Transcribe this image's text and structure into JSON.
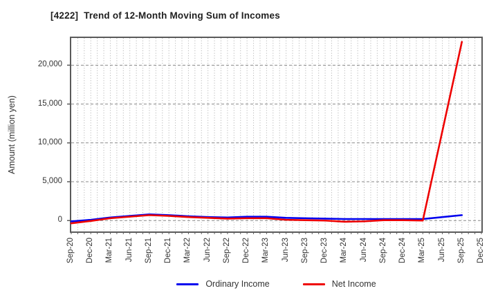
{
  "chart_data": {
    "type": "line",
    "title": "[4222]  Trend of 12-Month Moving Sum of Incomes",
    "xlabel": "",
    "ylabel": "Amount (million yen)",
    "categories": [
      "Sep-20",
      "Dec-20",
      "Mar-21",
      "Jun-21",
      "Sep-21",
      "Dec-21",
      "Mar-22",
      "Jun-22",
      "Sep-22",
      "Dec-22",
      "Mar-23",
      "Jun-23",
      "Sep-23",
      "Dec-23",
      "Mar-24",
      "Jun-24",
      "Sep-24",
      "Dec-24",
      "Mar-25",
      "Jun-25",
      "Sep-25",
      "Dec-25"
    ],
    "series": [
      {
        "name": "Ordinary Income",
        "color": "#0000ee",
        "values": [
          -100,
          100,
          400,
          600,
          800,
          700,
          550,
          450,
          400,
          500,
          500,
          350,
          300,
          250,
          200,
          200,
          200,
          200,
          200,
          450,
          700,
          null
        ]
      },
      {
        "name": "Net Income",
        "color": "#ee0000",
        "values": [
          -350,
          -50,
          300,
          500,
          700,
          600,
          450,
          350,
          250,
          300,
          300,
          100,
          50,
          0,
          -150,
          -100,
          50,
          50,
          0,
          11500,
          23000,
          null
        ]
      }
    ],
    "ylim": [
      -1400,
      23500
    ],
    "yticks": [
      0,
      5000,
      10000,
      15000,
      20000
    ],
    "ytick_labels": [
      "0",
      "5,000",
      "10,000",
      "15,000",
      "20,000"
    ],
    "grid": "vertical dotted monthly, horizontal dashed at yticks",
    "legend_position": "bottom-center",
    "colors": {
      "spine": "#5a5a5a",
      "grid_vertical": "#aaaaaa",
      "grid_horizontal": "#888888",
      "title_text": "#1f1f1f",
      "tick_text": "#333333",
      "background": "#ffffff"
    }
  }
}
